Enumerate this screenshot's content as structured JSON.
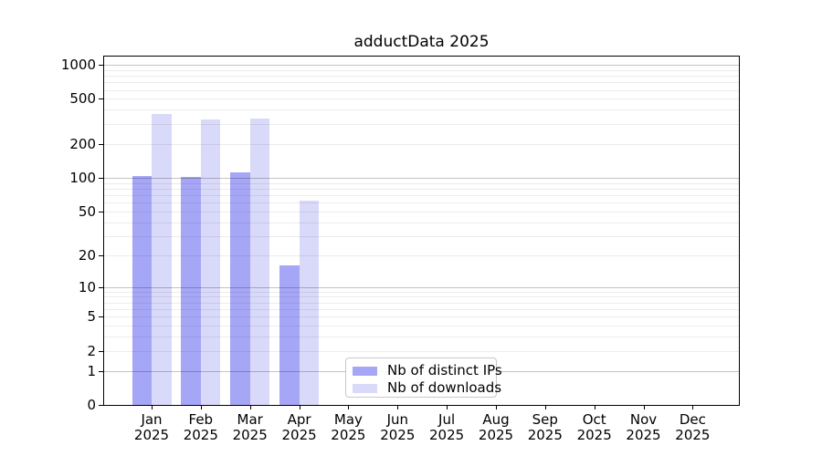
{
  "title": "adductData 2025",
  "chart_data": {
    "type": "bar",
    "title": "adductData 2025",
    "categories": [
      "Jan",
      "Feb",
      "Mar",
      "Apr",
      "May",
      "Jun",
      "Jul",
      "Aug",
      "Sep",
      "Oct",
      "Nov",
      "Dec"
    ],
    "category_year": "2025",
    "series": [
      {
        "name": "Nb of distinct IPs",
        "color": "#a6a6f6",
        "values": [
          104,
          102,
          112,
          16,
          0,
          0,
          0,
          0,
          0,
          0,
          0,
          0
        ]
      },
      {
        "name": "Nb of downloads",
        "color": "#d9d9f9",
        "values": [
          370,
          330,
          335,
          63,
          0,
          0,
          0,
          0,
          0,
          0,
          0,
          0
        ]
      }
    ],
    "y_axis": {
      "scale": "log1p",
      "ticks": [
        0,
        1,
        2,
        5,
        10,
        20,
        50,
        100,
        200,
        500,
        1000
      ],
      "major_gridlines": [
        1,
        10,
        100,
        1000
      ],
      "minor_gridlines": [
        2,
        3,
        4,
        5,
        6,
        7,
        8,
        9,
        20,
        30,
        40,
        50,
        60,
        70,
        80,
        90,
        200,
        300,
        400,
        500,
        600,
        700,
        800,
        900
      ],
      "ylim": [
        0,
        1200
      ],
      "grid": true
    },
    "xlabel": "",
    "ylabel": "",
    "legend": {
      "position": "bottom-center",
      "entries": [
        "Nb of distinct IPs",
        "Nb of downloads"
      ]
    }
  },
  "colors": {
    "background": "#ffffff",
    "axis_frame": "#000000",
    "tick_text": "#000000",
    "grid_major": "#c3c3c3",
    "grid_minor": "#ececec",
    "series_ips": "#a6a6f6",
    "series_downloads": "#d9d9f9"
  }
}
